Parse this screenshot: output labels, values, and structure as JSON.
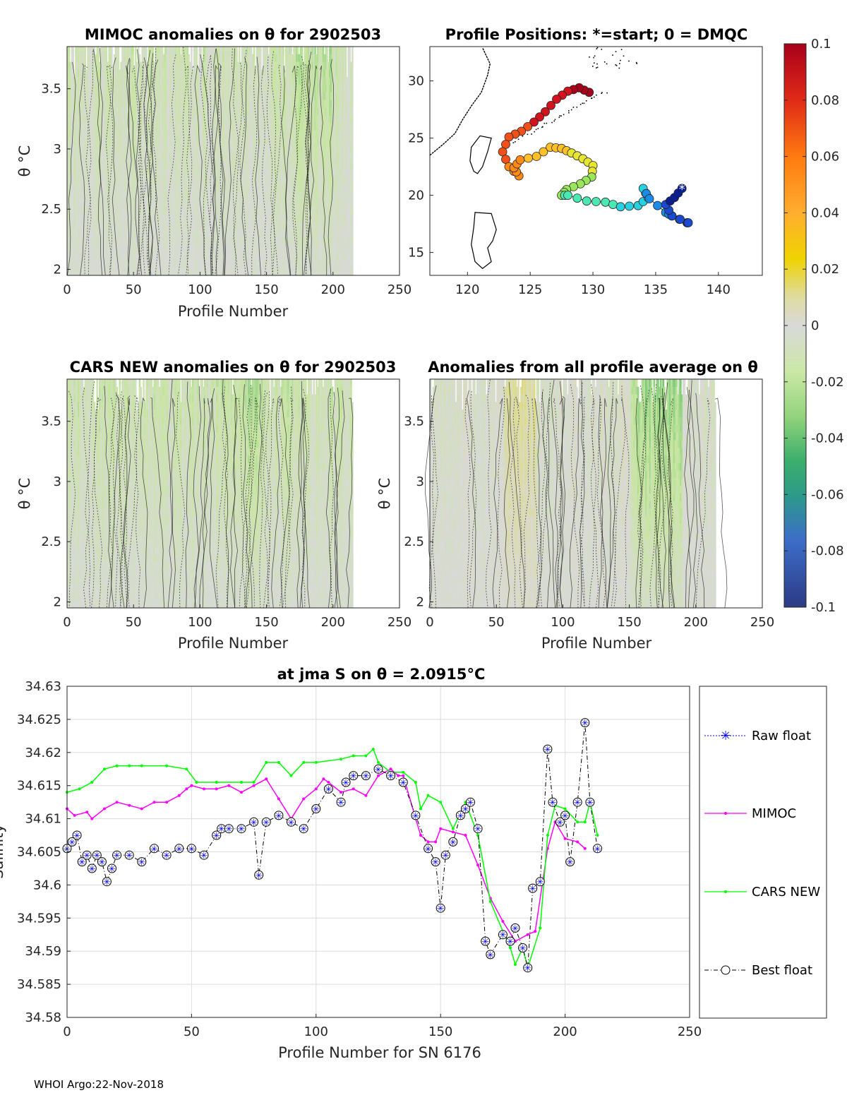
{
  "footer": "WHOI Argo:22-Nov-2018",
  "colorbar": {
    "ticks": [
      "0.1",
      "0.08",
      "0.06",
      "0.04",
      "0.02",
      "0",
      "-0.02",
      "-0.04",
      "-0.06",
      "-0.08",
      "-0.1"
    ],
    "range": [
      -0.1,
      0.1
    ],
    "colors": [
      "#c8001e",
      "#ff5a00",
      "#ff9a28",
      "#f0d200",
      "#dcdc96",
      "#d9d9d9",
      "#c8e6a0",
      "#78c878",
      "#2d9b7d",
      "#3c64c8",
      "#2d3c8c"
    ]
  },
  "chart_data": [
    {
      "id": "mimoc",
      "type": "heatmap",
      "title": "MIMOC anomalies on θ  for 2902503",
      "xlabel": "Profile Number",
      "ylabel": "θ °C",
      "xlim": [
        0,
        250
      ],
      "ylim": [
        1.95,
        3.85
      ],
      "xticks": [
        "0",
        "50",
        "100",
        "150",
        "200",
        "250"
      ],
      "yticks": [
        "2",
        "2.5",
        "3",
        "3.5"
      ],
      "n_profiles": 215
    },
    {
      "id": "map",
      "type": "scatter",
      "title": "Profile Positions: *=start; 0 = DMQC",
      "xlim": [
        117,
        143.5
      ],
      "ylim": [
        13,
        33
      ],
      "xticks": [
        "120",
        "125",
        "130",
        "135",
        "140"
      ],
      "yticks": [
        "15",
        "20",
        "25",
        "30"
      ],
      "track_lon": [
        137.1,
        136.5,
        135.8,
        136.3,
        137.6,
        137.5,
        136.3,
        135.8,
        134.5,
        134.0,
        134.4,
        133.6,
        132.2,
        131.0,
        129.5,
        128.0,
        127.5,
        127.9,
        129.0,
        129.9,
        130.0,
        129.2,
        128.3,
        127.5,
        126.6,
        125.5,
        124.2,
        123.7,
        124.1,
        123.3,
        122.8,
        123.3,
        124.3,
        125.3,
        126.2,
        127.1,
        128.0,
        128.9,
        129.7
      ],
      "track_lat": [
        20.6,
        19.8,
        19.2,
        18.2,
        17.6,
        17.6,
        18.2,
        18.5,
        19.7,
        20.6,
        19.8,
        19.1,
        19.0,
        19.4,
        19.5,
        20.0,
        20.0,
        20.5,
        21.0,
        21.6,
        22.6,
        23.2,
        23.7,
        24.1,
        24.2,
        23.4,
        23.1,
        22.4,
        21.7,
        22.5,
        23.8,
        25.1,
        25.6,
        26.4,
        27.3,
        28.4,
        29.1,
        29.4,
        29.0
      ],
      "start": "*",
      "dmqc_marker": "0"
    },
    {
      "id": "cars",
      "type": "heatmap",
      "title": "CARS NEW anomalies on θ for 2902503",
      "xlabel": "Profile Number",
      "ylabel": "θ °C",
      "xlim": [
        0,
        250
      ],
      "ylim": [
        1.95,
        3.85
      ],
      "xticks": [
        "0",
        "50",
        "100",
        "150",
        "200",
        "250"
      ],
      "yticks": [
        "2",
        "2.5",
        "3",
        "3.5"
      ],
      "n_profiles": 215
    },
    {
      "id": "allavg",
      "type": "heatmap",
      "title": "Anomalies from all profile average on θ",
      "xlabel": "Profile Number",
      "ylabel": "θ °C",
      "xlim": [
        0,
        250
      ],
      "ylim": [
        1.95,
        3.85
      ],
      "xticks": [
        "0",
        "50",
        "100",
        "150",
        "200",
        "250"
      ],
      "yticks": [
        "2",
        "2.5",
        "3",
        "3.5"
      ],
      "n_profiles": 215
    },
    {
      "id": "salinity",
      "type": "line",
      "title": "at jma S on θ = 2.0915°C",
      "xlabel": "Profile Number for SN 6176",
      "ylabel": "Salinity",
      "xlim": [
        0,
        250
      ],
      "ylim": [
        34.58,
        34.63
      ],
      "xticks": [
        "0",
        "50",
        "100",
        "150",
        "200",
        "250"
      ],
      "yticks": [
        "34.58",
        "34.585",
        "34.59",
        "34.595",
        "34.6",
        "34.605",
        "34.61",
        "34.615",
        "34.62",
        "34.625",
        "34.63"
      ],
      "legend": [
        "Raw float",
        "MIMOC",
        "CARS NEW",
        "Best float"
      ],
      "series": [
        {
          "name": "MIMOC",
          "color": "#ff00ff",
          "x": [
            0,
            3,
            8,
            10,
            15,
            20,
            25,
            30,
            35,
            40,
            45,
            48,
            50,
            55,
            60,
            65,
            70,
            75,
            80,
            85,
            90,
            95,
            100,
            103,
            105,
            110,
            115,
            120,
            125,
            130,
            133,
            135,
            140,
            142,
            145,
            148,
            150,
            155,
            160,
            165,
            170,
            175,
            180,
            185,
            188,
            193,
            196,
            200,
            205,
            208
          ],
          "values": [
            34.6115,
            34.6105,
            34.611,
            34.61,
            34.6115,
            34.6125,
            34.612,
            34.6115,
            34.6125,
            34.6125,
            34.6135,
            34.6145,
            34.615,
            34.6145,
            34.6145,
            34.615,
            34.614,
            34.615,
            34.616,
            34.613,
            34.61,
            34.613,
            34.6145,
            34.616,
            34.6155,
            34.614,
            34.6145,
            34.6135,
            34.6165,
            34.6175,
            34.6165,
            34.6165,
            34.61,
            34.6075,
            34.6065,
            34.6065,
            34.6085,
            34.608,
            34.6075,
            34.603,
            34.598,
            34.5945,
            34.5915,
            34.5925,
            34.593,
            34.6055,
            34.6095,
            34.607,
            34.6065,
            34.6055
          ]
        },
        {
          "name": "CARS NEW",
          "color": "#00ff00",
          "x": [
            0,
            5,
            10,
            15,
            20,
            25,
            30,
            40,
            48,
            52,
            60,
            70,
            75,
            80,
            85,
            90,
            95,
            100,
            110,
            115,
            120,
            123,
            125,
            130,
            135,
            140,
            142,
            145,
            150,
            155,
            160,
            165,
            170,
            175,
            178,
            180,
            183,
            185,
            190,
            193,
            196,
            200,
            205,
            208,
            210,
            213
          ],
          "values": [
            34.614,
            34.6145,
            34.6155,
            34.6175,
            34.618,
            34.618,
            34.618,
            34.618,
            34.6175,
            34.6155,
            34.6155,
            34.6155,
            34.6155,
            34.6185,
            34.6185,
            34.6165,
            34.6185,
            34.6185,
            34.619,
            34.6195,
            34.6195,
            34.6205,
            34.6185,
            34.617,
            34.617,
            34.6155,
            34.6115,
            34.6135,
            34.6125,
            34.6085,
            34.6125,
            34.6075,
            34.5975,
            34.593,
            34.5905,
            34.588,
            34.5905,
            34.5875,
            34.5935,
            34.6075,
            34.612,
            34.6115,
            34.6095,
            34.6095,
            34.6125,
            34.6075
          ]
        },
        {
          "name": "Best float",
          "color": "#000000",
          "x": [
            0,
            2,
            4,
            6,
            8,
            10,
            12,
            14,
            16,
            18,
            20,
            25,
            30,
            35,
            40,
            45,
            50,
            55,
            60,
            62,
            65,
            70,
            75,
            77,
            80,
            85,
            90,
            95,
            100,
            105,
            110,
            112,
            115,
            120,
            125,
            130,
            135,
            140,
            145,
            148,
            150,
            152,
            155,
            158,
            160,
            162,
            165,
            168,
            170,
            175,
            178,
            180,
            183,
            185,
            187,
            190,
            193,
            195,
            198,
            200,
            202,
            205,
            208,
            210,
            213
          ],
          "values": [
            34.6055,
            34.6065,
            34.6075,
            34.6035,
            34.6045,
            34.6025,
            34.6045,
            34.6035,
            34.6005,
            34.6025,
            34.6045,
            34.6045,
            34.6035,
            34.6055,
            34.6045,
            34.6055,
            34.6055,
            34.6045,
            34.6075,
            34.6085,
            34.6085,
            34.6085,
            34.6095,
            34.6015,
            34.6095,
            34.6105,
            34.6095,
            34.6085,
            34.6115,
            34.6145,
            34.6125,
            34.6155,
            34.6165,
            34.6165,
            34.6175,
            34.6165,
            34.6155,
            34.6105,
            34.6055,
            34.6035,
            34.5965,
            34.6045,
            34.6065,
            34.6105,
            34.6115,
            34.6125,
            34.6085,
            34.5915,
            34.5895,
            34.5925,
            34.5915,
            34.5935,
            34.5905,
            34.5875,
            34.5995,
            34.6005,
            34.6205,
            34.6125,
            34.6095,
            34.6105,
            34.6035,
            34.6125,
            34.6245,
            34.6125,
            34.6055
          ]
        }
      ]
    }
  ]
}
